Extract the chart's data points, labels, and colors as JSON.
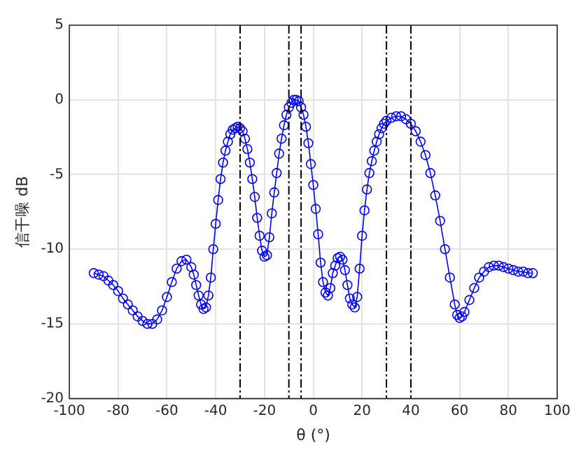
{
  "chart_data": {
    "type": "line",
    "xlabel": "θ (°)",
    "ylabel": "信干噪 dB",
    "xlim": [
      -100,
      100
    ],
    "xticks": [
      -100,
      -80,
      -60,
      -40,
      -20,
      0,
      20,
      40,
      60,
      80,
      100
    ],
    "ylim": [
      -20,
      5
    ],
    "yticks": [
      -20,
      -15,
      -10,
      -5,
      0,
      5
    ],
    "grid": true,
    "legend": false,
    "marker": "circle",
    "line_style": "solid",
    "ref_lines": [
      {
        "axis": "x",
        "value": -30,
        "color": "#000000"
      },
      {
        "axis": "x",
        "value": -10,
        "color": "#000000"
      },
      {
        "axis": "x",
        "value": -5,
        "color": "#000000"
      },
      {
        "axis": "x",
        "value": 30,
        "color": "#000000"
      },
      {
        "axis": "x",
        "value": 40,
        "color": "#000000"
      }
    ],
    "series": [
      {
        "color": "#0000ff",
        "x": [
          -90,
          -88,
          -86,
          -84,
          -82,
          -80,
          -78,
          -76,
          -74,
          -72,
          -70,
          -68,
          -66,
          -64,
          -62,
          -60,
          -58,
          -56,
          -54,
          -52,
          -50,
          -49,
          -48,
          -47,
          -46,
          -45,
          -44,
          -43,
          -42,
          -41,
          -40,
          -39,
          -38,
          -37,
          -36,
          -35,
          -34,
          -33,
          -32,
          -31,
          -30,
          -29,
          -28,
          -27,
          -26,
          -25,
          -24,
          -23,
          -22,
          -21,
          -20,
          -19,
          -18,
          -17,
          -16,
          -15,
          -14,
          -13,
          -12,
          -11,
          -10,
          -9,
          -8,
          -7,
          -6,
          -5,
          -4,
          -3,
          -2,
          -1,
          0,
          1,
          2,
          3,
          4,
          5,
          6,
          7,
          8,
          9,
          10,
          11,
          12,
          13,
          14,
          15,
          16,
          17,
          18,
          19,
          20,
          21,
          22,
          23,
          24,
          25,
          26,
          27,
          28,
          29,
          30,
          32,
          34,
          36,
          38,
          40,
          42,
          44,
          46,
          48,
          50,
          52,
          54,
          56,
          58,
          59,
          60,
          61,
          62,
          64,
          66,
          68,
          70,
          72,
          74,
          76,
          78,
          80,
          82,
          84,
          86,
          88,
          90
        ],
        "values": [
          -11.6,
          -11.7,
          -11.8,
          -12.1,
          -12.4,
          -12.8,
          -13.3,
          -13.7,
          -14.1,
          -14.5,
          -14.8,
          -15,
          -15,
          -14.7,
          -14.1,
          -13.2,
          -12.2,
          -11.3,
          -10.8,
          -10.7,
          -11.2,
          -11.7,
          -12.4,
          -13.1,
          -13.7,
          -14,
          -13.9,
          -13.1,
          -11.9,
          -10,
          -8.3,
          -6.7,
          -5.3,
          -4.2,
          -3.4,
          -2.8,
          -2.3,
          -2,
          -1.9,
          -1.8,
          -1.9,
          -2.1,
          -2.6,
          -3.3,
          -4.2,
          -5.3,
          -6.5,
          -7.9,
          -9.1,
          -10.1,
          -10.5,
          -10.4,
          -9.2,
          -7.6,
          -6.2,
          -4.9,
          -3.6,
          -2.6,
          -1.7,
          -1,
          -0.5,
          -0.2,
          0,
          0,
          -0.1,
          -0.5,
          -1,
          -1.8,
          -2.9,
          -4.3,
          -5.7,
          -7.3,
          -9,
          -10.9,
          -12.2,
          -12.9,
          -13.1,
          -12.6,
          -11.6,
          -11.1,
          -10.6,
          -10.5,
          -10.7,
          -11.4,
          -12.4,
          -13.3,
          -13.7,
          -13.9,
          -13.2,
          -11.3,
          -9.1,
          -7.4,
          -6,
          -4.9,
          -4.1,
          -3.4,
          -2.8,
          -2.3,
          -1.9,
          -1.6,
          -1.4,
          -1.2,
          -1.1,
          -1.1,
          -1.3,
          -1.6,
          -2.1,
          -2.8,
          -3.7,
          -4.9,
          -6.4,
          -8.1,
          -10,
          -11.9,
          -13.7,
          -14.4,
          -14.6,
          -14.5,
          -14.2,
          -13.4,
          -12.6,
          -11.9,
          -11.5,
          -11.2,
          -11.1,
          -11.1,
          -11.2,
          -11.3,
          -11.4,
          -11.5,
          -11.5,
          -11.6,
          -11.6
        ]
      }
    ]
  }
}
